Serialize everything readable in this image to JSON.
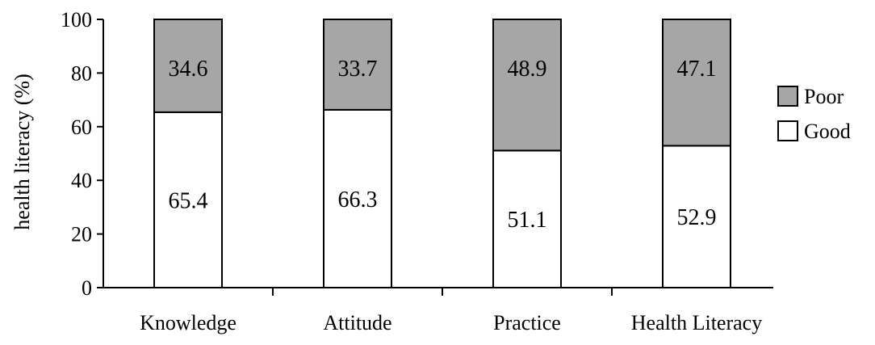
{
  "chart_data": {
    "type": "bar",
    "stacked": true,
    "categories": [
      "Knowledge",
      "Attitude",
      "Practice",
      "Health Literacy"
    ],
    "series": [
      {
        "name": "Good",
        "values": [
          65.4,
          66.3,
          51.1,
          52.9
        ],
        "color": "#ffffff"
      },
      {
        "name": "Poor",
        "values": [
          34.6,
          33.7,
          48.9,
          47.1
        ],
        "color": "#a6a6a6"
      }
    ],
    "data_labels": [
      {
        "good": "65.4",
        "poor": "34.6"
      },
      {
        "good": "66.3",
        "poor": "33.7"
      },
      {
        "good": "51.1",
        "poor": "48.9"
      },
      {
        "good": "52.9",
        "poor": "47.1"
      }
    ],
    "ylabel": "health literacy (%)",
    "xlabel": "",
    "ylim": [
      0,
      100
    ],
    "yticks": [
      "0",
      "20",
      "40",
      "60",
      "80",
      "100"
    ],
    "grid": false,
    "legend": {
      "placement": "right",
      "entries": [
        {
          "label": "Poor",
          "color": "#a6a6a6"
        },
        {
          "label": "Good",
          "color": "#ffffff"
        }
      ]
    }
  }
}
